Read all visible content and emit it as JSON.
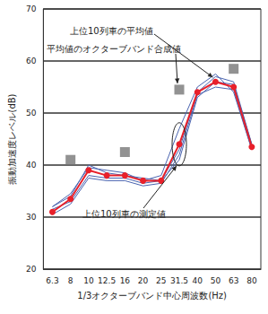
{
  "chart_data": {
    "type": "line",
    "x_label": "1/3オクターブバンド中心周波数(Hz)",
    "y_label": "振動加速度レベル(dB)",
    "categories": [
      "6.3",
      "8",
      "10",
      "12.5",
      "16",
      "20",
      "25",
      "31.5",
      "40",
      "50",
      "63",
      "80"
    ],
    "ylim": [
      20,
      70
    ],
    "yticks": [
      20,
      30,
      40,
      50,
      60,
      70
    ],
    "grid": true,
    "series": [
      {
        "name": "上位10列車の測定値",
        "type": "line",
        "color": "#4a64b0",
        "marker": "none",
        "line_style": "solid",
        "values": [
          [
            32,
            34,
            40,
            38.5,
            38,
            37.5,
            37,
            41,
            53,
            56,
            55.5,
            44
          ],
          [
            31.5,
            33,
            38,
            37.5,
            37.5,
            36.5,
            37,
            43,
            54,
            57,
            56,
            44
          ],
          [
            32,
            34.5,
            39.5,
            39,
            38.5,
            37,
            38,
            47,
            55,
            57.5,
            54,
            43
          ],
          [
            30.5,
            32.5,
            37.5,
            37,
            37,
            36,
            36.5,
            42,
            53.5,
            55,
            54.5,
            43
          ]
        ]
      },
      {
        "name": "上位10列車の平均値",
        "type": "line",
        "color": "#e8202a",
        "marker": "circle",
        "line_style": "solid",
        "values": [
          31,
          33.5,
          39,
          38,
          38,
          37,
          37,
          44,
          54,
          56,
          55,
          43.5
        ]
      },
      {
        "name": "平均値のオクターブバンド合成値",
        "type": "scatter",
        "color": "#777777",
        "marker": "star",
        "values": [
          null,
          41,
          null,
          null,
          42.5,
          null,
          null,
          54.5,
          null,
          null,
          58.5,
          null
        ]
      }
    ],
    "annotations": [
      "上位10列車の平均値",
      "平均値のオクターブバンド合成値",
      "上位10列車の測定値"
    ]
  }
}
